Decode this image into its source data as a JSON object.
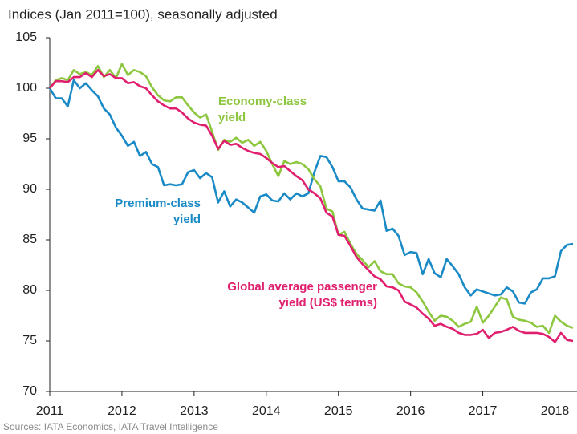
{
  "chart_data": {
    "type": "line",
    "title": "Indices (Jan 2011=100), seasonally adjusted",
    "source": "Sources: IATA Economics, IATA Travel Intelligence",
    "x": [
      2011,
      2011.083,
      2011.167,
      2011.25,
      2011.333,
      2011.417,
      2011.5,
      2011.583,
      2011.667,
      2011.75,
      2011.833,
      2011.917,
      2012,
      2012.083,
      2012.167,
      2012.25,
      2012.333,
      2012.417,
      2012.5,
      2012.583,
      2012.667,
      2012.75,
      2012.833,
      2012.917,
      2013,
      2013.083,
      2013.167,
      2013.25,
      2013.333,
      2013.417,
      2013.5,
      2013.583,
      2013.667,
      2013.75,
      2013.833,
      2013.917,
      2014,
      2014.083,
      2014.167,
      2014.25,
      2014.333,
      2014.417,
      2014.5,
      2014.583,
      2014.667,
      2014.75,
      2014.833,
      2014.917,
      2015,
      2015.083,
      2015.167,
      2015.25,
      2015.333,
      2015.417,
      2015.5,
      2015.583,
      2015.667,
      2015.75,
      2015.833,
      2015.917,
      2016,
      2016.083,
      2016.167,
      2016.25,
      2016.333,
      2016.417,
      2016.5,
      2016.583,
      2016.667,
      2016.75,
      2016.833,
      2016.917,
      2017,
      2017.083,
      2017.167,
      2017.25,
      2017.333,
      2017.417,
      2017.5,
      2017.583,
      2017.667,
      2017.75,
      2017.833,
      2017.917,
      2018,
      2018.083,
      2018.167,
      2018.25
    ],
    "series": [
      {
        "label": [
          "Premium-class",
          "yield"
        ],
        "color": "#1a8ac6",
        "values": [
          100,
          99,
          99,
          98.2,
          100.8,
          100,
          100.5,
          99.8,
          99.2,
          98,
          97.4,
          96.1,
          95.3,
          94.3,
          94.7,
          93.3,
          93.7,
          92.5,
          92.2,
          90.4,
          90.5,
          90.4,
          90.5,
          91.7,
          91.9,
          91.1,
          91.6,
          91.2,
          88.7,
          89.8,
          88.3,
          89,
          88.7,
          88.2,
          87.7,
          89.3,
          89.5,
          88.9,
          88.8,
          89.6,
          89,
          89.6,
          89.3,
          89.6,
          91.7,
          93.3,
          93.2,
          92.2,
          90.8,
          90.8,
          90.2,
          89,
          88.1,
          88,
          87.9,
          88.9,
          85.9,
          86.1,
          85.4,
          83.5,
          83.8,
          83.7,
          81.6,
          83.1,
          81.7,
          81.3,
          83.1,
          82.4,
          81.6,
          80.3,
          79.5,
          80.1,
          79.9,
          79.7,
          79.5,
          79.6,
          80.3,
          79.9,
          78.8,
          78.7,
          79.8,
          80.1,
          81.2,
          81.2,
          81.4,
          83.9,
          84.5,
          84.6
        ]
      },
      {
        "label": [
          "Economy-class",
          "yield"
        ],
        "color": "#8dc63f",
        "values": [
          100,
          100.8,
          101,
          100.8,
          101.8,
          101.4,
          101.6,
          101.3,
          102.2,
          101.1,
          101.8,
          101,
          102.4,
          101.3,
          101.8,
          101.6,
          101.2,
          100.1,
          99.3,
          98.8,
          98.7,
          99.1,
          99.1,
          98.3,
          97.6,
          97.1,
          97.4,
          95.7,
          93.9,
          94.9,
          94.7,
          95.1,
          94.6,
          94.9,
          94.3,
          94.7,
          93.8,
          92.5,
          91.3,
          92.8,
          92.5,
          92.7,
          92.5,
          92,
          91,
          90.3,
          88.1,
          87.8,
          85.5,
          85.8,
          84.6,
          83.6,
          83,
          82.3,
          82.9,
          81.9,
          81.6,
          81.6,
          80.7,
          80.4,
          80.3,
          79.8,
          78.9,
          77.9,
          77,
          77.5,
          77.4,
          77,
          76.4,
          76.7,
          76.9,
          78.4,
          76.8,
          77.5,
          78.4,
          79.3,
          79.1,
          77.4,
          77.1,
          77,
          76.8,
          76.4,
          76.5,
          75.8,
          77.5,
          76.9,
          76.5,
          76.3
        ]
      },
      {
        "label": [
          "Global average passenger",
          "yield (US$ terms)"
        ],
        "color": "#e0206f",
        "values": [
          100,
          100.7,
          100.7,
          100.6,
          101.1,
          101.1,
          101.5,
          101.1,
          101.8,
          101.2,
          101.4,
          101,
          101,
          100.5,
          100.6,
          100.2,
          100,
          99.3,
          98.7,
          98.3,
          98,
          98,
          97.6,
          97,
          96.6,
          96.4,
          96.3,
          95.3,
          94,
          94.8,
          94.4,
          94.5,
          94.1,
          93.8,
          93.6,
          93.5,
          93.1,
          92.6,
          92.2,
          92.3,
          91.8,
          91.3,
          90.9,
          90,
          89.6,
          89.1,
          87.7,
          87.3,
          85.5,
          85.4,
          84.4,
          83.3,
          82.6,
          82,
          81.4,
          81.1,
          80.4,
          80.3,
          80,
          78.9,
          78.6,
          78.3,
          77.7,
          77.2,
          76.5,
          76.7,
          76.4,
          76.2,
          75.8,
          75.6,
          75.6,
          75.7,
          76.1,
          75.3,
          75.8,
          75.9,
          76.1,
          76.4,
          76,
          75.8,
          75.8,
          75.8,
          75.7,
          75.4,
          74.9,
          75.8,
          75.1,
          75
        ]
      }
    ],
    "xlim": [
      2011,
      2018.25
    ],
    "xticks": [
      2011,
      2012,
      2013,
      2014,
      2015,
      2016,
      2017,
      2018
    ],
    "ylim": [
      70,
      105
    ],
    "yticks": [
      70,
      75,
      80,
      85,
      90,
      95,
      100,
      105
    ]
  }
}
